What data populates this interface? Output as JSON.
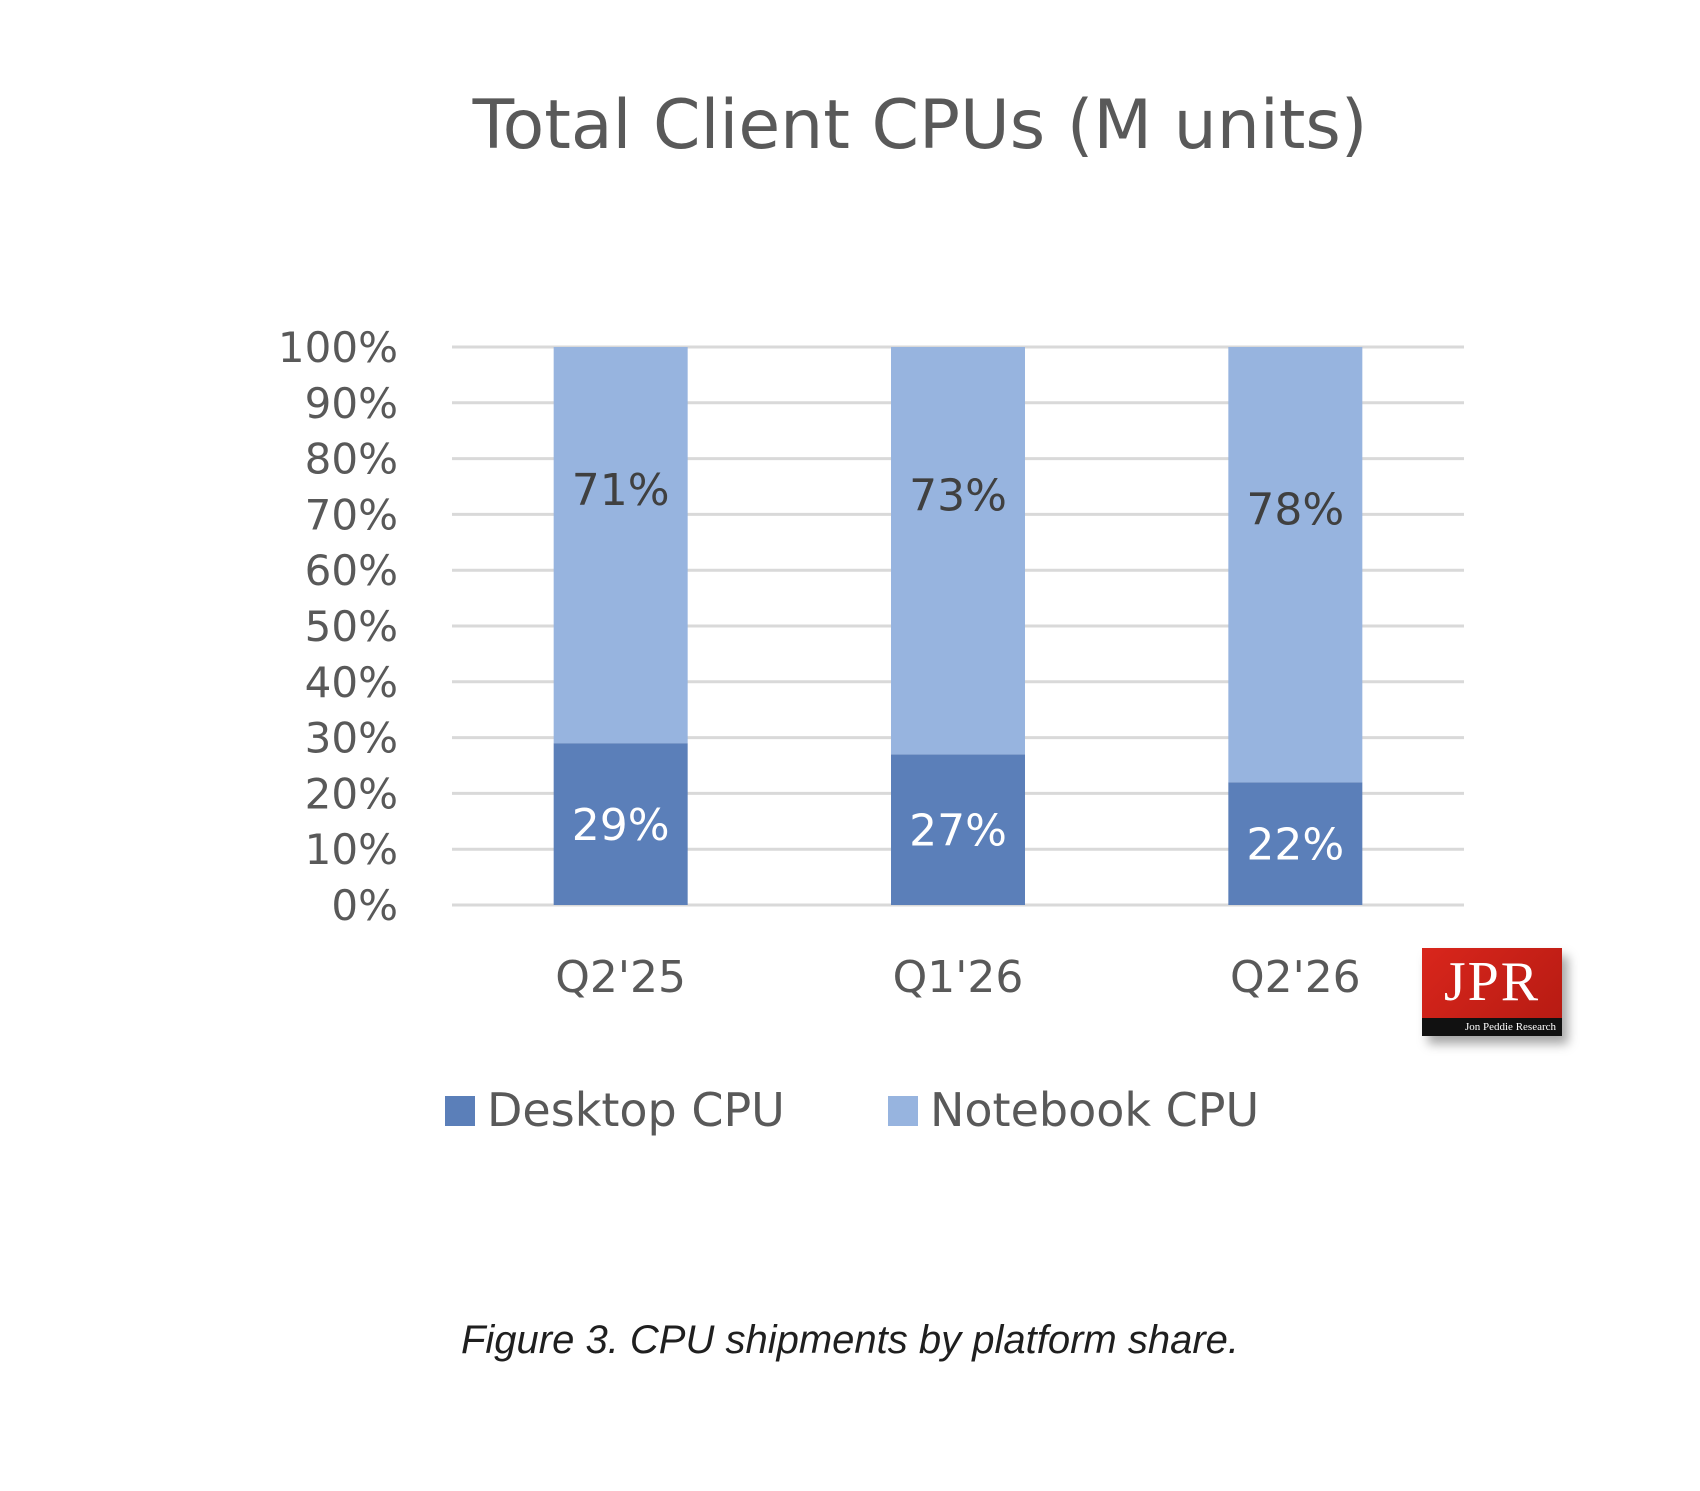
{
  "chart_data": {
    "type": "bar",
    "stacked": true,
    "title": "Total Client CPUs (M units)",
    "categories": [
      "Q2'25",
      "Q1'26",
      "Q2'26"
    ],
    "y_ticks": [
      "0%",
      "10%",
      "20%",
      "30%",
      "40%",
      "50%",
      "60%",
      "70%",
      "80%",
      "90%",
      "100%"
    ],
    "ylim": [
      0,
      100
    ],
    "grid": true,
    "legend_position": "bottom",
    "series": [
      {
        "name": "Desktop CPU",
        "values": [
          29,
          27,
          22
        ],
        "labels": [
          "29%",
          "27%",
          "22%"
        ],
        "color": "#5b7fb9"
      },
      {
        "name": "Notebook CPU",
        "values": [
          71,
          73,
          78
        ],
        "labels": [
          "71%",
          "73%",
          "78%"
        ],
        "color": "#97b4df"
      }
    ]
  },
  "caption": "Figure 3. CPU shipments by platform share.",
  "logo": {
    "text": "JPR",
    "subtext": "Jon Peddie Research"
  }
}
